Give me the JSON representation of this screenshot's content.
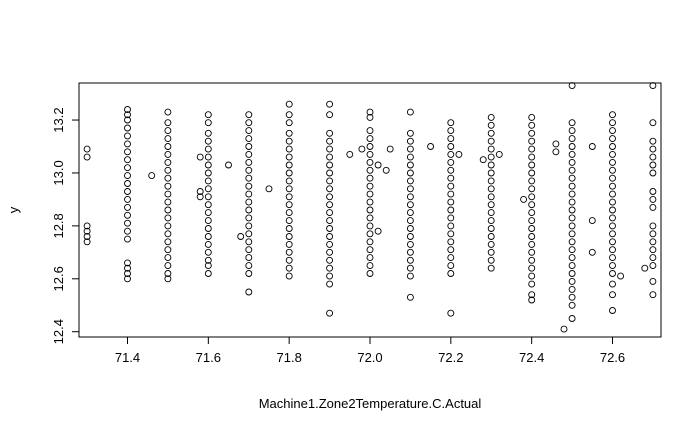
{
  "chart_data": {
    "type": "scatter",
    "title": "",
    "xlabel": "Machine1.Zone2Temperature.C.Actual",
    "ylabel": "y",
    "xlim": [
      71.28,
      72.72
    ],
    "ylim": [
      12.38,
      13.34
    ],
    "x_ticks": [
      "71.4",
      "71.6",
      "71.8",
      "72.0",
      "72.2",
      "72.4",
      "72.6"
    ],
    "y_ticks": [
      "12.4",
      "12.6",
      "12.8",
      "13.0",
      "13.2"
    ],
    "marker": "open-circle",
    "grid": false,
    "columns": [
      {
        "x": 71.3,
        "y": [
          13.09,
          13.06,
          12.8,
          12.78,
          12.76,
          12.74
        ]
      },
      {
        "x": 71.4,
        "y": [
          13.24,
          13.22,
          13.2,
          13.17,
          13.14,
          13.11,
          13.08,
          13.05,
          13.02,
          12.99,
          12.96,
          12.93,
          12.9,
          12.87,
          12.84,
          12.81,
          12.78,
          12.75,
          12.66,
          12.64,
          12.62,
          12.6
        ]
      },
      {
        "x": 71.5,
        "y": [
          13.23,
          13.19,
          13.16,
          13.13,
          13.1,
          13.07,
          13.04,
          13.01,
          12.98,
          12.95,
          12.92,
          12.89,
          12.86,
          12.83,
          12.8,
          12.77,
          12.74,
          12.71,
          12.68,
          12.65,
          12.62,
          12.6
        ]
      },
      {
        "x": 71.6,
        "y": [
          13.22,
          13.19,
          13.15,
          13.12,
          13.09,
          13.06,
          13.03,
          13.0,
          12.97,
          12.94,
          12.91,
          12.88,
          12.85,
          12.82,
          12.79,
          12.76,
          12.73,
          12.7,
          12.67,
          12.65,
          12.62
        ]
      },
      {
        "x": 71.7,
        "y": [
          13.22,
          13.19,
          13.16,
          13.13,
          13.1,
          13.07,
          13.04,
          13.01,
          12.98,
          12.95,
          12.92,
          12.89,
          12.86,
          12.83,
          12.8,
          12.77,
          12.74,
          12.71,
          12.68,
          12.65,
          12.62,
          12.55
        ]
      },
      {
        "x": 71.8,
        "y": [
          13.26,
          13.22,
          13.19,
          13.15,
          13.12,
          13.09,
          13.06,
          13.03,
          13.0,
          12.97,
          12.94,
          12.91,
          12.88,
          12.85,
          12.82,
          12.79,
          12.76,
          12.73,
          12.7,
          12.67,
          12.64,
          12.61
        ]
      },
      {
        "x": 71.9,
        "y": [
          13.26,
          13.22,
          13.15,
          13.12,
          13.09,
          13.06,
          13.03,
          13.0,
          12.97,
          12.94,
          12.91,
          12.88,
          12.85,
          12.82,
          12.79,
          12.76,
          12.73,
          12.7,
          12.67,
          12.64,
          12.61,
          12.58,
          12.47
        ]
      },
      {
        "x": 72.0,
        "y": [
          13.23,
          13.21,
          13.16,
          13.13,
          13.1,
          13.07,
          13.04,
          13.01,
          12.98,
          12.95,
          12.92,
          12.89,
          12.86,
          12.83,
          12.8,
          12.77,
          12.74,
          12.71,
          12.68,
          12.65,
          12.62
        ]
      },
      {
        "x": 72.1,
        "y": [
          13.23,
          13.15,
          13.12,
          13.09,
          13.06,
          13.03,
          13.0,
          12.97,
          12.94,
          12.91,
          12.88,
          12.85,
          12.82,
          12.79,
          12.76,
          12.73,
          12.7,
          12.67,
          12.64,
          12.61,
          12.53
        ]
      },
      {
        "x": 72.2,
        "y": [
          13.19,
          13.16,
          13.13,
          13.1,
          13.07,
          13.04,
          13.01,
          12.98,
          12.95,
          12.92,
          12.89,
          12.86,
          12.83,
          12.8,
          12.77,
          12.74,
          12.71,
          12.68,
          12.65,
          12.62,
          12.47
        ]
      },
      {
        "x": 72.3,
        "y": [
          13.21,
          13.18,
          13.15,
          13.12,
          13.09,
          13.06,
          13.03,
          13.0,
          12.97,
          12.94,
          12.91,
          12.88,
          12.85,
          12.82,
          12.79,
          12.76,
          12.73,
          12.7,
          12.67,
          12.64
        ]
      },
      {
        "x": 72.4,
        "y": [
          13.21,
          13.18,
          13.15,
          13.12,
          13.09,
          13.06,
          13.03,
          13.0,
          12.97,
          12.94,
          12.91,
          12.88,
          12.85,
          12.82,
          12.79,
          12.76,
          12.73,
          12.7,
          12.67,
          12.64,
          12.61,
          12.58,
          12.54,
          12.52
        ]
      },
      {
        "x": 72.5,
        "y": [
          13.33,
          13.19,
          13.16,
          13.13,
          13.1,
          13.07,
          13.04,
          13.01,
          12.98,
          12.95,
          12.92,
          12.89,
          12.86,
          12.83,
          12.8,
          12.77,
          12.74,
          12.71,
          12.68,
          12.65,
          12.62,
          12.59,
          12.56,
          12.53,
          12.5,
          12.45
        ]
      },
      {
        "x": 72.6,
        "y": [
          13.22,
          13.19,
          13.16,
          13.13,
          13.1,
          13.07,
          13.04,
          13.01,
          12.98,
          12.95,
          12.92,
          12.89,
          12.86,
          12.83,
          12.8,
          12.77,
          12.74,
          12.71,
          12.68,
          12.65,
          12.62,
          12.58,
          12.54,
          12.48
        ]
      },
      {
        "x": 72.7,
        "y": [
          13.33,
          13.19,
          13.12,
          13.09,
          13.06,
          13.03,
          13.0,
          12.93,
          12.9,
          12.87,
          12.8,
          12.77,
          12.74,
          12.71,
          12.68,
          12.65,
          12.59,
          12.54
        ]
      }
    ],
    "scattered_points": [
      {
        "x": 71.58,
        "y": 12.93
      },
      {
        "x": 71.58,
        "y": 12.91
      },
      {
        "x": 71.58,
        "y": 13.06
      },
      {
        "x": 71.46,
        "y": 12.99
      },
      {
        "x": 71.65,
        "y": 13.03
      },
      {
        "x": 71.68,
        "y": 12.76
      },
      {
        "x": 71.75,
        "y": 12.94
      },
      {
        "x": 71.95,
        "y": 13.07
      },
      {
        "x": 71.98,
        "y": 13.09
      },
      {
        "x": 72.02,
        "y": 13.03
      },
      {
        "x": 72.02,
        "y": 12.78
      },
      {
        "x": 72.04,
        "y": 13.01
      },
      {
        "x": 72.05,
        "y": 13.09
      },
      {
        "x": 72.15,
        "y": 13.1
      },
      {
        "x": 72.22,
        "y": 13.07
      },
      {
        "x": 72.28,
        "y": 13.05
      },
      {
        "x": 72.32,
        "y": 13.07
      },
      {
        "x": 72.38,
        "y": 12.9
      },
      {
        "x": 72.46,
        "y": 13.11
      },
      {
        "x": 72.46,
        "y": 13.08
      },
      {
        "x": 72.48,
        "y": 12.41
      },
      {
        "x": 72.55,
        "y": 13.1
      },
      {
        "x": 72.55,
        "y": 12.82
      },
      {
        "x": 72.55,
        "y": 12.7
      },
      {
        "x": 72.62,
        "y": 12.61
      },
      {
        "x": 72.68,
        "y": 12.64
      }
    ]
  }
}
